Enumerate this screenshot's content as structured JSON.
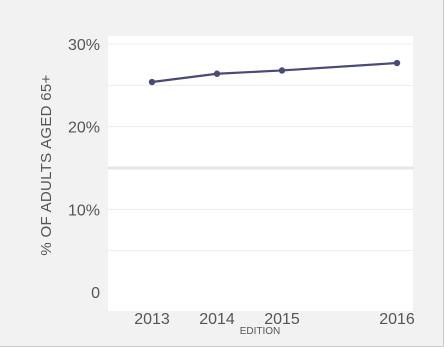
{
  "chart_data": {
    "type": "line",
    "title": "",
    "xlabel": "EDITION",
    "ylabel": "% OF ADULTS AGED 65+",
    "x": [
      "2013",
      "2014",
      "2015",
      "2016"
    ],
    "series": [
      {
        "values": [
          25.4,
          26.4,
          26.8,
          27.7
        ],
        "color": "#4a4a78"
      }
    ],
    "ylim": [
      0,
      30
    ],
    "yticks": [
      0,
      10,
      20,
      30
    ],
    "ytick_labels": [
      "0",
      "10%",
      "20%",
      "30%"
    ],
    "grid": true,
    "colors": {
      "background": "#f2f2f2",
      "plot_area": "#ffffff",
      "gridline": "#ececec",
      "line": "#4a4a78"
    }
  }
}
